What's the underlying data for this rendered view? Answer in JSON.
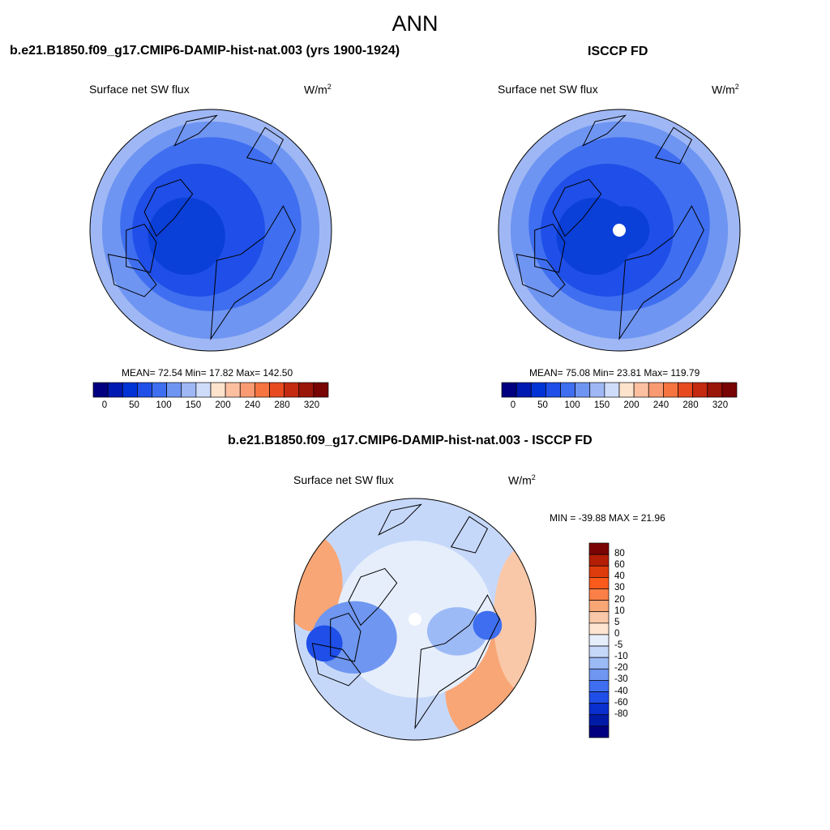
{
  "main_title": "ANN",
  "panels": [
    {
      "title": "b.e21.B1850.f09_g17.CMIP6-DAMIP-hist-nat.003 (yrs 1900-1924)",
      "variable": "Surface net SW flux",
      "units": "W/m",
      "units_sup": "2",
      "stats": "MEAN=  72.54  Min=  17.82  Max= 142.50",
      "colorbar": {
        "labels": [
          "0",
          "50",
          "100",
          "150",
          "200",
          "240",
          "280",
          "320"
        ],
        "colors": [
          "#000080",
          "#0019b0",
          "#0033d6",
          "#1f4fe8",
          "#3f6ff0",
          "#6f95f2",
          "#9fb8f5",
          "#cfdcf9",
          "#fde2cc",
          "#fcbfa0",
          "#f99a72",
          "#f5743f",
          "#e84a20",
          "#c42a0f",
          "#9a1608",
          "#780404"
        ]
      },
      "map_data": {
        "mean": 72.54,
        "min": 17.82,
        "max": 142.5
      }
    },
    {
      "title": "ISCCP FD",
      "variable": "Surface net SW flux",
      "units": "W/m",
      "units_sup": "2",
      "stats": "MEAN=  75.08  Min=  23.81  Max= 119.79",
      "colorbar": {
        "labels": [
          "0",
          "50",
          "100",
          "150",
          "200",
          "240",
          "280",
          "320"
        ],
        "colors": [
          "#000080",
          "#0019b0",
          "#0033d6",
          "#1f4fe8",
          "#3f6ff0",
          "#6f95f2",
          "#9fb8f5",
          "#cfdcf9",
          "#fde2cc",
          "#fcbfa0",
          "#f99a72",
          "#f5743f",
          "#e84a20",
          "#c42a0f",
          "#9a1608",
          "#780404"
        ]
      },
      "map_data": {
        "mean": 75.08,
        "min": 23.81,
        "max": 119.79
      }
    },
    {
      "title": "b.e21.B1850.f09_g17.CMIP6-DAMIP-hist-nat.003 - ISCCP FD",
      "variable": "Surface net SW flux",
      "units": "W/m",
      "units_sup": "2",
      "stats": "MIN = -39.88 MAX =  21.96",
      "colorbar": {
        "labels": [
          "80",
          "60",
          "40",
          "30",
          "20",
          "10",
          "5",
          "0",
          "-5",
          "-10",
          "-20",
          "-30",
          "-40",
          "-60",
          "-80"
        ],
        "colors": [
          "#7a0303",
          "#b31e05",
          "#de3c0c",
          "#fa5a1c",
          "#fb8048",
          "#f8a676",
          "#f9c8a8",
          "#fde5d2",
          "#e6eefc",
          "#c6d8fa",
          "#9cbaf6",
          "#6f96f0",
          "#3f6ff0",
          "#1f4fe8",
          "#0a2fcf",
          "#001aa8",
          "#000080"
        ]
      },
      "map_data": {
        "min": -39.88,
        "max": 21.96
      }
    }
  ]
}
